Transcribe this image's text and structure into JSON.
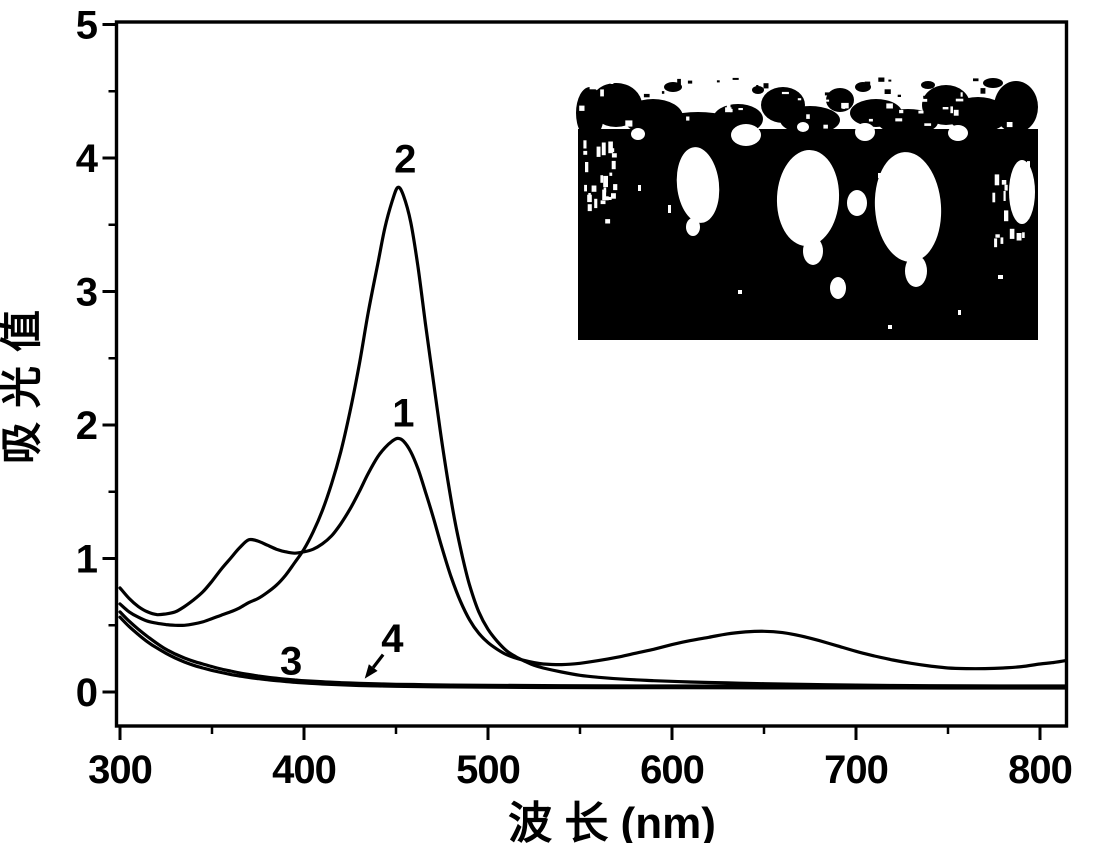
{
  "figure": {
    "background": "#ffffff",
    "line_color": "#000000"
  },
  "chart_data": {
    "type": "line",
    "title": "",
    "xlabel": "波 长 (nm)",
    "ylabel": "吸光值",
    "xlim": [
      300,
      800
    ],
    "ylim": [
      0,
      5
    ],
    "x_ticks": [
      "300",
      "400",
      "500",
      "600",
      "700",
      "800"
    ],
    "x_tick_values": [
      300,
      400,
      500,
      600,
      700,
      800
    ],
    "x_minor_tick_values": [
      350,
      450,
      550,
      650,
      750
    ],
    "y_ticks": [
      "0",
      "1",
      "2",
      "3",
      "4",
      "5"
    ],
    "y_tick_values": [
      0,
      1,
      2,
      3,
      4,
      5
    ],
    "y_minor_tick_values": [
      0.5,
      1.5,
      2.5,
      3.5,
      4.5
    ],
    "grid": false,
    "legend": "none",
    "series": [
      {
        "name": "1",
        "peak_nm": 451,
        "peak_abs": 1.9,
        "points": [
          [
            300,
            0.78
          ],
          [
            305,
            0.7
          ],
          [
            310,
            0.64
          ],
          [
            315,
            0.6
          ],
          [
            320,
            0.58
          ],
          [
            325,
            0.585
          ],
          [
            330,
            0.6
          ],
          [
            335,
            0.64
          ],
          [
            340,
            0.69
          ],
          [
            345,
            0.75
          ],
          [
            350,
            0.83
          ],
          [
            355,
            0.92
          ],
          [
            360,
            1.0
          ],
          [
            365,
            1.08
          ],
          [
            370,
            1.14
          ],
          [
            375,
            1.13
          ],
          [
            380,
            1.1
          ],
          [
            385,
            1.07
          ],
          [
            390,
            1.05
          ],
          [
            395,
            1.04
          ],
          [
            400,
            1.05
          ],
          [
            405,
            1.07
          ],
          [
            410,
            1.11
          ],
          [
            415,
            1.17
          ],
          [
            420,
            1.26
          ],
          [
            425,
            1.37
          ],
          [
            430,
            1.5
          ],
          [
            435,
            1.64
          ],
          [
            440,
            1.76
          ],
          [
            444,
            1.83
          ],
          [
            448,
            1.88
          ],
          [
            451,
            1.9
          ],
          [
            454,
            1.88
          ],
          [
            458,
            1.8
          ],
          [
            462,
            1.67
          ],
          [
            466,
            1.5
          ],
          [
            470,
            1.32
          ],
          [
            475,
            1.08
          ],
          [
            480,
            0.86
          ],
          [
            485,
            0.68
          ],
          [
            490,
            0.54
          ],
          [
            495,
            0.44
          ],
          [
            500,
            0.37
          ],
          [
            505,
            0.32
          ],
          [
            510,
            0.28
          ],
          [
            515,
            0.255
          ],
          [
            520,
            0.235
          ],
          [
            525,
            0.22
          ],
          [
            530,
            0.21
          ],
          [
            540,
            0.205
          ],
          [
            550,
            0.215
          ],
          [
            560,
            0.235
          ],
          [
            570,
            0.26
          ],
          [
            580,
            0.29
          ],
          [
            590,
            0.32
          ],
          [
            600,
            0.355
          ],
          [
            610,
            0.385
          ],
          [
            620,
            0.41
          ],
          [
            630,
            0.435
          ],
          [
            640,
            0.45
          ],
          [
            650,
            0.455
          ],
          [
            660,
            0.445
          ],
          [
            670,
            0.42
          ],
          [
            680,
            0.385
          ],
          [
            690,
            0.345
          ],
          [
            700,
            0.305
          ],
          [
            710,
            0.27
          ],
          [
            720,
            0.24
          ],
          [
            730,
            0.215
          ],
          [
            740,
            0.195
          ],
          [
            750,
            0.18
          ],
          [
            760,
            0.175
          ],
          [
            770,
            0.175
          ],
          [
            780,
            0.18
          ],
          [
            790,
            0.19
          ],
          [
            800,
            0.21
          ],
          [
            807,
            0.22
          ],
          [
            814,
            0.235
          ]
        ]
      },
      {
        "name": "2",
        "peak_nm": 451,
        "peak_abs": 3.78,
        "points": [
          [
            300,
            0.66
          ],
          [
            305,
            0.6
          ],
          [
            310,
            0.56
          ],
          [
            315,
            0.53
          ],
          [
            320,
            0.515
          ],
          [
            325,
            0.505
          ],
          [
            330,
            0.5
          ],
          [
            335,
            0.5
          ],
          [
            340,
            0.51
          ],
          [
            345,
            0.525
          ],
          [
            350,
            0.55
          ],
          [
            355,
            0.575
          ],
          [
            360,
            0.6
          ],
          [
            365,
            0.63
          ],
          [
            370,
            0.67
          ],
          [
            375,
            0.7
          ],
          [
            380,
            0.745
          ],
          [
            385,
            0.8
          ],
          [
            390,
            0.875
          ],
          [
            395,
            0.97
          ],
          [
            400,
            1.07
          ],
          [
            405,
            1.2
          ],
          [
            410,
            1.36
          ],
          [
            415,
            1.56
          ],
          [
            420,
            1.8
          ],
          [
            425,
            2.1
          ],
          [
            430,
            2.45
          ],
          [
            435,
            2.85
          ],
          [
            440,
            3.2
          ],
          [
            444,
            3.48
          ],
          [
            448,
            3.68
          ],
          [
            451,
            3.78
          ],
          [
            454,
            3.72
          ],
          [
            458,
            3.52
          ],
          [
            462,
            3.18
          ],
          [
            466,
            2.76
          ],
          [
            470,
            2.36
          ],
          [
            474,
            1.96
          ],
          [
            478,
            1.6
          ],
          [
            482,
            1.28
          ],
          [
            486,
            1.02
          ],
          [
            490,
            0.8
          ],
          [
            495,
            0.6
          ],
          [
            500,
            0.47
          ],
          [
            505,
            0.38
          ],
          [
            510,
            0.31
          ],
          [
            515,
            0.265
          ],
          [
            520,
            0.23
          ],
          [
            525,
            0.2
          ],
          [
            530,
            0.18
          ],
          [
            540,
            0.15
          ],
          [
            550,
            0.125
          ],
          [
            560,
            0.11
          ],
          [
            575,
            0.095
          ],
          [
            590,
            0.085
          ],
          [
            610,
            0.075
          ],
          [
            630,
            0.068
          ],
          [
            650,
            0.062
          ],
          [
            675,
            0.056
          ],
          [
            700,
            0.052
          ],
          [
            730,
            0.048
          ],
          [
            760,
            0.046
          ],
          [
            800,
            0.045
          ],
          [
            814,
            0.045
          ]
        ]
      },
      {
        "name": "3",
        "points": [
          [
            300,
            0.6
          ],
          [
            305,
            0.53
          ],
          [
            310,
            0.47
          ],
          [
            315,
            0.415
          ],
          [
            320,
            0.365
          ],
          [
            325,
            0.32
          ],
          [
            330,
            0.285
          ],
          [
            335,
            0.255
          ],
          [
            340,
            0.23
          ],
          [
            345,
            0.21
          ],
          [
            350,
            0.19
          ],
          [
            355,
            0.172
          ],
          [
            360,
            0.157
          ],
          [
            365,
            0.143
          ],
          [
            370,
            0.131
          ],
          [
            375,
            0.12
          ],
          [
            380,
            0.111
          ],
          [
            385,
            0.103
          ],
          [
            390,
            0.096
          ],
          [
            395,
            0.09
          ],
          [
            400,
            0.085
          ],
          [
            410,
            0.077
          ],
          [
            420,
            0.07
          ],
          [
            430,
            0.065
          ],
          [
            440,
            0.061
          ],
          [
            450,
            0.058
          ],
          [
            465,
            0.055
          ],
          [
            480,
            0.052
          ],
          [
            500,
            0.05
          ],
          [
            530,
            0.048
          ],
          [
            560,
            0.046
          ],
          [
            600,
            0.045
          ],
          [
            650,
            0.044
          ],
          [
            700,
            0.043
          ],
          [
            750,
            0.042
          ],
          [
            800,
            0.042
          ],
          [
            814,
            0.042
          ]
        ]
      },
      {
        "name": "4",
        "points": [
          [
            300,
            0.56
          ],
          [
            305,
            0.49
          ],
          [
            310,
            0.43
          ],
          [
            315,
            0.375
          ],
          [
            320,
            0.33
          ],
          [
            325,
            0.29
          ],
          [
            330,
            0.255
          ],
          [
            335,
            0.225
          ],
          [
            340,
            0.2
          ],
          [
            345,
            0.18
          ],
          [
            350,
            0.162
          ],
          [
            355,
            0.146
          ],
          [
            360,
            0.132
          ],
          [
            365,
            0.12
          ],
          [
            370,
            0.109
          ],
          [
            375,
            0.1
          ],
          [
            380,
            0.092
          ],
          [
            385,
            0.085
          ],
          [
            390,
            0.079
          ],
          [
            395,
            0.073
          ],
          [
            400,
            0.068
          ],
          [
            410,
            0.06
          ],
          [
            420,
            0.054
          ],
          [
            430,
            0.049
          ],
          [
            440,
            0.046
          ],
          [
            450,
            0.043
          ],
          [
            465,
            0.04
          ],
          [
            480,
            0.038
          ],
          [
            500,
            0.036
          ],
          [
            530,
            0.034
          ],
          [
            560,
            0.033
          ],
          [
            600,
            0.032
          ],
          [
            650,
            0.031
          ],
          [
            700,
            0.031
          ],
          [
            750,
            0.03
          ],
          [
            800,
            0.03
          ],
          [
            814,
            0.03
          ]
        ]
      }
    ],
    "annotations": [
      {
        "text": "2",
        "x": 455,
        "y": 3.89
      },
      {
        "text": "1",
        "x": 454,
        "y": 1.99
      },
      {
        "text": "3",
        "x": 393,
        "y": 0.13
      },
      {
        "text": "4",
        "x": 448,
        "y": 0.3,
        "arrow_from": [
          443,
          0.28
        ],
        "arrow_to": [
          433,
          0.1
        ]
      }
    ]
  },
  "inset": {
    "description": "High-contrast black-and-white photograph inset: dark field with three bright egg-shaped reflections (sample vials) and speckled edges"
  }
}
